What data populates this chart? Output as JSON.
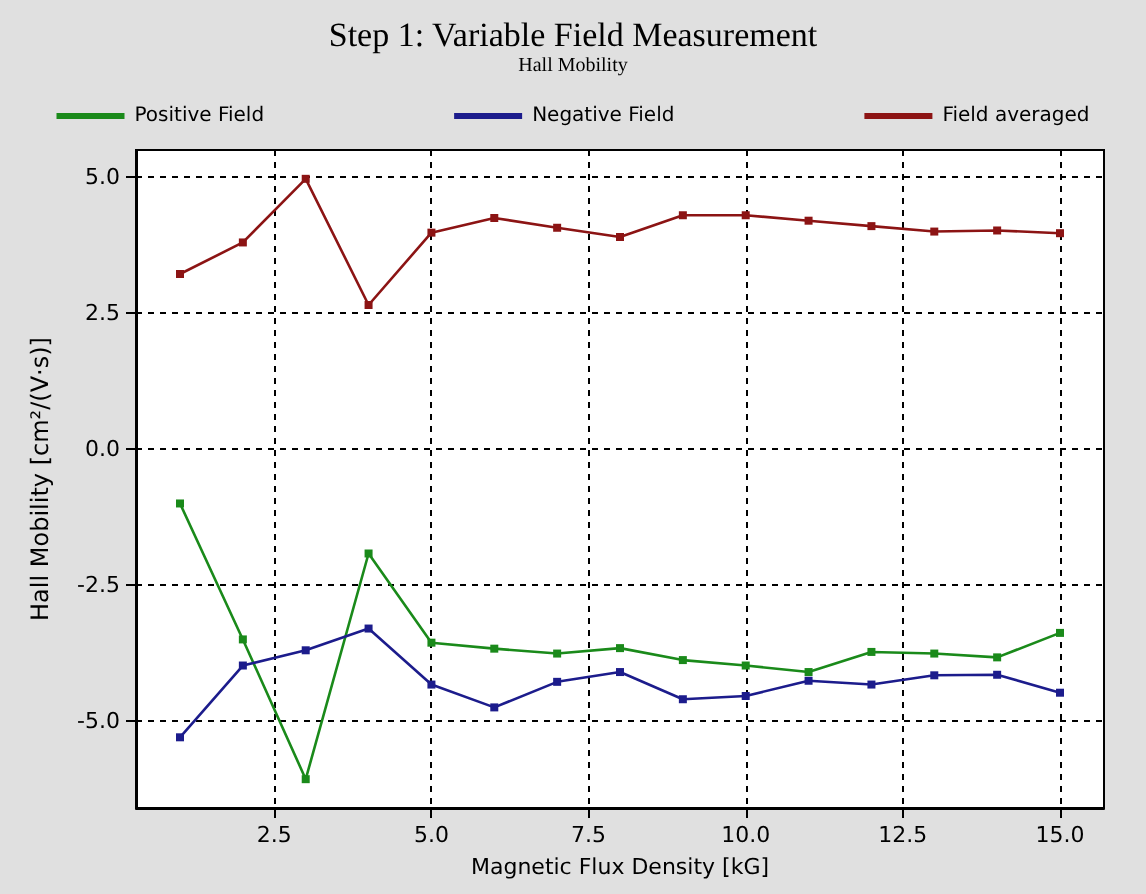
{
  "chart_data": {
    "type": "line",
    "title": "Step 1: Variable Field Measurement",
    "subtitle": "Hall Mobility",
    "xlabel": "Magnetic Flux Density [kG]",
    "ylabel": "Hall Mobility [cm²/(V·s)]",
    "x": [
      1,
      2,
      3,
      4,
      5,
      6,
      7,
      8,
      9,
      10,
      11,
      12,
      13,
      14,
      15
    ],
    "series": [
      {
        "name": "Positive Field",
        "color": "#1a8a1a",
        "values": [
          -1.0,
          -3.5,
          -6.07,
          -1.92,
          -3.56,
          -3.67,
          -3.76,
          -3.66,
          -3.88,
          -3.98,
          -4.1,
          -3.73,
          -3.76,
          -3.83,
          -3.38
        ]
      },
      {
        "name": "Negative Field",
        "color": "#1c1c8c",
        "values": [
          -5.3,
          -3.98,
          -3.7,
          -3.3,
          -4.33,
          -4.75,
          -4.28,
          -4.1,
          -4.6,
          -4.54,
          -4.26,
          -4.33,
          -4.16,
          -4.15,
          -4.48
        ]
      },
      {
        "name": "Field averaged",
        "color": "#8c1414",
        "values": [
          3.22,
          3.8,
          4.97,
          2.65,
          3.98,
          4.25,
          4.07,
          3.9,
          4.3,
          4.3,
          4.2,
          4.1,
          4.0,
          4.02,
          3.97
        ]
      }
    ],
    "xlim": [
      0.3,
      15.7
    ],
    "xticks": [
      {
        "value": 2.5,
        "label": "2.5"
      },
      {
        "value": 5,
        "label": "5.0"
      },
      {
        "value": 7.5,
        "label": "7.5"
      },
      {
        "value": 10,
        "label": "10.0"
      },
      {
        "value": 12.5,
        "label": "12.5"
      },
      {
        "value": 15,
        "label": "15.0"
      }
    ],
    "ylim": [
      -6.6,
      5.5
    ],
    "yticks": [
      {
        "value": -5,
        "label": "-5.0"
      },
      {
        "value": -2.5,
        "label": "-2.5"
      },
      {
        "value": 0,
        "label": "0.0"
      },
      {
        "value": 2.5,
        "label": "2.5"
      },
      {
        "value": 5,
        "label": "5.0"
      }
    ],
    "grid": true,
    "legend": "top",
    "marker": "square",
    "line_style": "solid"
  }
}
